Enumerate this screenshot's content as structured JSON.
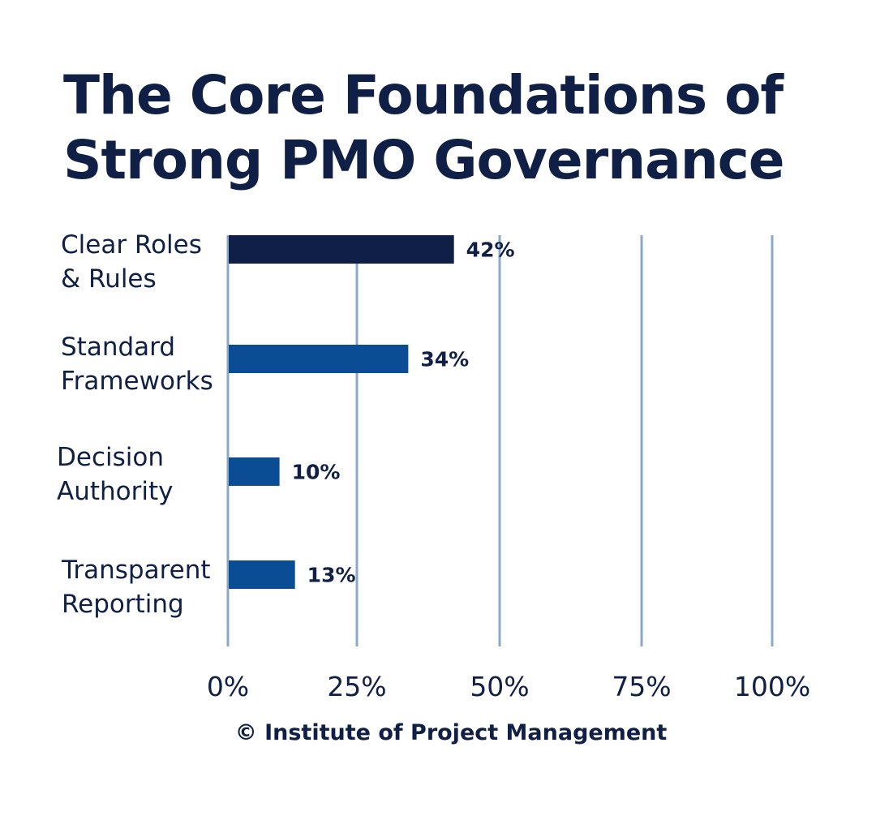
{
  "chart_data": {
    "type": "bar",
    "orientation": "horizontal",
    "title": [
      "The Core Foundations of",
      "Strong PMO Governance"
    ],
    "categories": [
      [
        "Clear Roles",
        "& Rules"
      ],
      [
        "Standard",
        "Frameworks"
      ],
      [
        "Decision",
        "Authority"
      ],
      [
        "Transparent",
        "Reporting"
      ]
    ],
    "values": [
      42,
      34,
      10,
      13
    ],
    "value_labels": [
      "42%",
      "34%",
      "10%",
      "13%"
    ],
    "bar_colors": [
      "#0f1f45",
      "#0b4d94",
      "#0b4d94",
      "#0b4d94"
    ],
    "xlim": [
      0,
      100
    ],
    "xticks": [
      0,
      25,
      50,
      75,
      100
    ],
    "xtick_labels": [
      "0%",
      "25%",
      "50%",
      "75%",
      "100%"
    ],
    "grid": true,
    "gridline_color": "#8aa8c8",
    "credit": "© Institute of Project Management"
  }
}
